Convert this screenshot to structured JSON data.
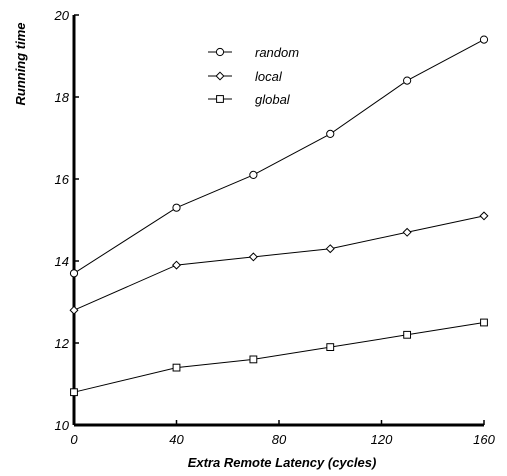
{
  "chart_data": {
    "type": "line",
    "title": "",
    "xlabel": "Extra Remote Latency (cycles)",
    "ylabel": "Running time",
    "xlim": [
      0,
      160
    ],
    "ylim": [
      10,
      20
    ],
    "xticks": [
      "0",
      "40",
      "80",
      "120",
      "160"
    ],
    "yticks": [
      "10",
      "12",
      "14",
      "16",
      "18",
      "20"
    ],
    "grid": false,
    "legend_position": "top-center",
    "x": [
      0,
      40,
      70,
      100,
      130,
      160
    ],
    "series": [
      {
        "name": "random",
        "marker": "circle",
        "values": [
          13.7,
          15.3,
          16.1,
          17.1,
          18.4,
          19.4
        ]
      },
      {
        "name": "local",
        "marker": "diamond",
        "values": [
          12.8,
          13.9,
          14.1,
          14.3,
          14.7,
          15.1
        ]
      },
      {
        "name": "global",
        "marker": "square",
        "values": [
          10.8,
          11.4,
          11.6,
          11.9,
          12.2,
          12.5
        ]
      }
    ],
    "line_color": "#000000"
  }
}
